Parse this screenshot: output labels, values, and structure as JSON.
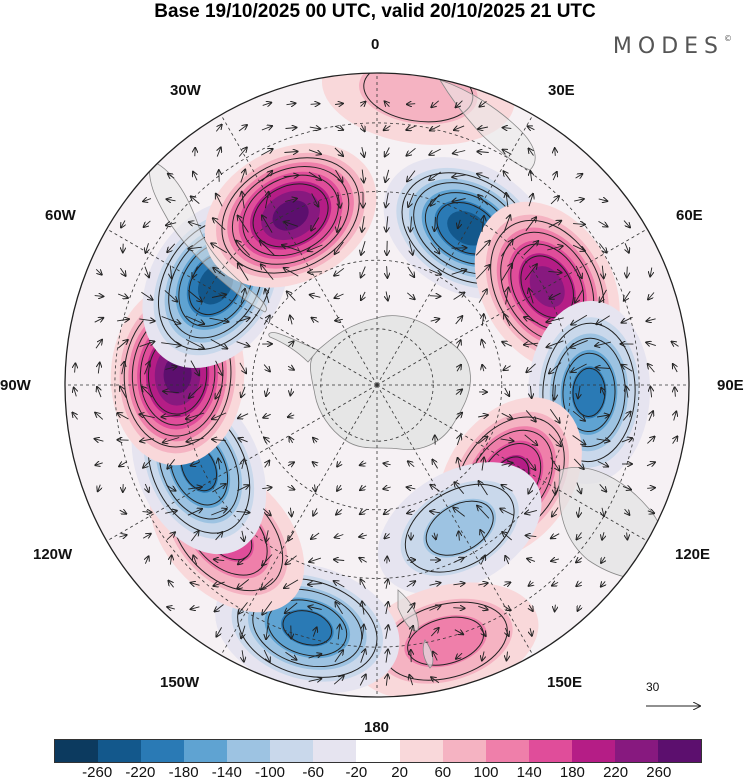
{
  "title": "Base 19/10/2025 00 UTC, valid 20/10/2025 21 UTC",
  "logo": "MODES",
  "logo_mark": "©",
  "meridian_labels": {
    "lon_0": "0",
    "lon_30e": "30E",
    "lon_60e": "60E",
    "lon_90e": "90E",
    "lon_120e": "120E",
    "lon_150e": "150E",
    "lon_180": "180",
    "lon_150w": "150W",
    "lon_120w": "120W",
    "lon_90w": "90W",
    "lon_60w": "60W",
    "lon_30w": "30W"
  },
  "reference_vector": {
    "value": "30"
  },
  "colorbar": {
    "colors": [
      "#0c3a5f",
      "#13588c",
      "#2a7ab5",
      "#5fa3d2",
      "#9dc3e2",
      "#c9d8eb",
      "#e6e4f0",
      "#ffffff",
      "#f9d8da",
      "#f5b3c2",
      "#ef7faa",
      "#e04d9a",
      "#b51d86",
      "#87197f",
      "#5c0f6e"
    ],
    "labels": [
      "-260",
      "-220",
      "-180",
      "-140",
      "-100",
      "-60",
      "-20",
      "20",
      "60",
      "100",
      "140",
      "180",
      "220",
      "260"
    ]
  },
  "anomalies": [
    {
      "lon": 30,
      "r": 0.58,
      "value": -220
    },
    {
      "lon": 60,
      "r": 0.63,
      "value": 240
    },
    {
      "lon": 92,
      "r": 0.68,
      "value": -180
    },
    {
      "lon": 125,
      "r": 0.52,
      "value": 200
    },
    {
      "lon": 150,
      "r": 0.53,
      "value": -120
    },
    {
      "lon": 165,
      "r": 0.85,
      "value": 100
    },
    {
      "lon": 196,
      "r": 0.81,
      "value": -200
    },
    {
      "lon": 225,
      "r": 0.68,
      "value": 160
    },
    {
      "lon": 245,
      "r": 0.63,
      "value": -180
    },
    {
      "lon": 273,
      "r": 0.64,
      "value": 260
    },
    {
      "lon": 302,
      "r": 0.61,
      "value": -240
    },
    {
      "lon": 333,
      "r": 0.61,
      "value": 260
    },
    {
      "lon": 8,
      "r": 0.95,
      "value": 60
    }
  ]
}
